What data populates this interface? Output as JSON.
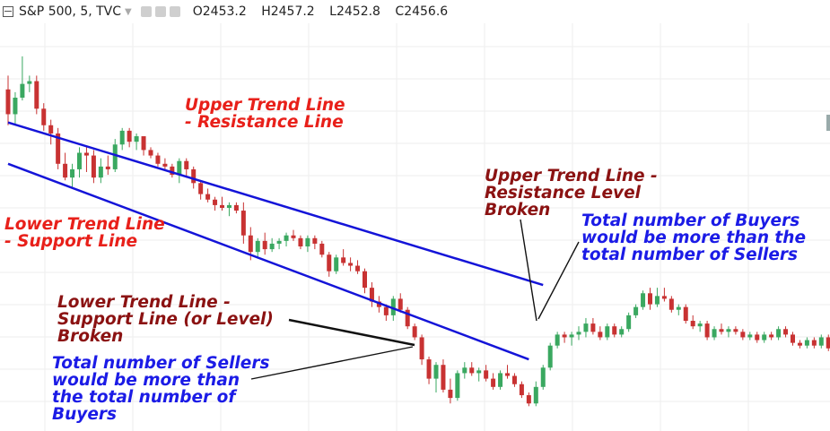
{
  "header": {
    "symbol": "S&P 500, 5, TVC",
    "open": "O2453.2",
    "high": "H2457.2",
    "low": "L2452.8",
    "close": "C2456.6",
    "icons": [
      "chart-panel-icon",
      "settings-icon",
      "visibility-icon",
      "close-icon"
    ]
  },
  "annotations": {
    "upper_trend_line": "Upper Trend Line\n- Resistance Line",
    "lower_trend_line": "Lower Trend Line\n- Support Line",
    "upper_broken": "Upper Trend Line -\nResistance Level\nBroken",
    "buyers": "Total number of Buyers\nwould be more than the\ntotal number of Sellers",
    "lower_broken": "Lower Trend Line -\nSupport Line (or Level)\nBroken",
    "sellers": "Total number of Sellers\nwould be more than\nthe total number of\nBuyers"
  },
  "colors": {
    "up_candle": "#3aa860",
    "down_candle": "#c83232",
    "trend_line": "#1414d8",
    "grid": "#eeeeee",
    "pointer": "#111111"
  },
  "chart_data": {
    "type": "candlestick",
    "symbol": "S&P 500",
    "interval": "5",
    "source": "TVC",
    "grid": true,
    "trend_lines": [
      {
        "points": [
          [
            0,
            2457.2
          ],
          [
            75,
            2451.3
          ]
        ]
      },
      {
        "points": [
          [
            0,
            2455.7
          ],
          [
            73,
            2448.6
          ]
        ]
      }
    ],
    "candles": [
      {
        "o": 2458.4,
        "h": 2458.9,
        "l": 2457.1,
        "c": 2457.5
      },
      {
        "o": 2457.5,
        "h": 2458.3,
        "l": 2457.1,
        "c": 2458.1
      },
      {
        "o": 2458.1,
        "h": 2459.6,
        "l": 2458.0,
        "c": 2458.6
      },
      {
        "o": 2458.6,
        "h": 2458.9,
        "l": 2458.3,
        "c": 2458.7
      },
      {
        "o": 2458.7,
        "h": 2458.9,
        "l": 2457.5,
        "c": 2457.7
      },
      {
        "o": 2457.7,
        "h": 2457.9,
        "l": 2456.9,
        "c": 2457.1
      },
      {
        "o": 2457.1,
        "h": 2457.3,
        "l": 2456.4,
        "c": 2456.8
      },
      {
        "o": 2456.8,
        "h": 2457.0,
        "l": 2455.5,
        "c": 2455.7
      },
      {
        "o": 2455.7,
        "h": 2456.1,
        "l": 2455.1,
        "c": 2455.2
      },
      {
        "o": 2455.2,
        "h": 2455.7,
        "l": 2454.8,
        "c": 2455.5
      },
      {
        "o": 2455.5,
        "h": 2456.3,
        "l": 2455.2,
        "c": 2456.1
      },
      {
        "o": 2456.1,
        "h": 2456.3,
        "l": 2455.4,
        "c": 2456.0
      },
      {
        "o": 2456.0,
        "h": 2456.2,
        "l": 2455.0,
        "c": 2455.2
      },
      {
        "o": 2455.2,
        "h": 2455.9,
        "l": 2455.0,
        "c": 2455.6
      },
      {
        "o": 2455.6,
        "h": 2456.0,
        "l": 2455.3,
        "c": 2455.5
      },
      {
        "o": 2455.5,
        "h": 2456.6,
        "l": 2455.4,
        "c": 2456.4
      },
      {
        "o": 2456.4,
        "h": 2457.0,
        "l": 2456.2,
        "c": 2456.9
      },
      {
        "o": 2456.9,
        "h": 2457.0,
        "l": 2456.3,
        "c": 2456.5
      },
      {
        "o": 2456.5,
        "h": 2456.8,
        "l": 2456.2,
        "c": 2456.7
      },
      {
        "o": 2456.7,
        "h": 2456.7,
        "l": 2456.0,
        "c": 2456.2
      },
      {
        "o": 2456.2,
        "h": 2456.3,
        "l": 2455.9,
        "c": 2456.0
      },
      {
        "o": 2456.0,
        "h": 2456.1,
        "l": 2455.6,
        "c": 2455.7
      },
      {
        "o": 2455.7,
        "h": 2455.9,
        "l": 2455.5,
        "c": 2455.6
      },
      {
        "o": 2455.6,
        "h": 2455.7,
        "l": 2455.2,
        "c": 2455.3
      },
      {
        "o": 2455.3,
        "h": 2455.9,
        "l": 2455.0,
        "c": 2455.8
      },
      {
        "o": 2455.8,
        "h": 2455.9,
        "l": 2455.2,
        "c": 2455.5
      },
      {
        "o": 2455.5,
        "h": 2455.6,
        "l": 2454.8,
        "c": 2455.0
      },
      {
        "o": 2455.0,
        "h": 2455.1,
        "l": 2454.4,
        "c": 2454.6
      },
      {
        "o": 2454.6,
        "h": 2454.8,
        "l": 2454.3,
        "c": 2454.4
      },
      {
        "o": 2454.4,
        "h": 2454.5,
        "l": 2454.0,
        "c": 2454.2
      },
      {
        "o": 2454.2,
        "h": 2454.5,
        "l": 2454.0,
        "c": 2454.1
      },
      {
        "o": 2454.1,
        "h": 2454.3,
        "l": 2453.8,
        "c": 2454.2
      },
      {
        "o": 2454.2,
        "h": 2454.3,
        "l": 2453.9,
        "c": 2454.0
      },
      {
        "o": 2454.0,
        "h": 2454.3,
        "l": 2452.8,
        "c": 2453.1
      },
      {
        "o": 2453.1,
        "h": 2453.4,
        "l": 2452.2,
        "c": 2452.5
      },
      {
        "o": 2452.5,
        "h": 2453.0,
        "l": 2452.3,
        "c": 2452.9
      },
      {
        "o": 2452.9,
        "h": 2453.2,
        "l": 2452.4,
        "c": 2452.6
      },
      {
        "o": 2452.6,
        "h": 2453.0,
        "l": 2452.5,
        "c": 2452.8
      },
      {
        "o": 2452.8,
        "h": 2453.0,
        "l": 2452.6,
        "c": 2452.9
      },
      {
        "o": 2452.9,
        "h": 2453.2,
        "l": 2452.7,
        "c": 2453.1
      },
      {
        "o": 2453.1,
        "h": 2453.3,
        "l": 2452.9,
        "c": 2453.0
      },
      {
        "o": 2453.0,
        "h": 2453.1,
        "l": 2452.6,
        "c": 2452.7
      },
      {
        "o": 2452.7,
        "h": 2453.1,
        "l": 2452.5,
        "c": 2453.0
      },
      {
        "o": 2453.0,
        "h": 2453.1,
        "l": 2452.6,
        "c": 2452.8
      },
      {
        "o": 2452.8,
        "h": 2452.9,
        "l": 2452.3,
        "c": 2452.4
      },
      {
        "o": 2452.4,
        "h": 2452.5,
        "l": 2451.6,
        "c": 2451.8
      },
      {
        "o": 2451.8,
        "h": 2452.4,
        "l": 2451.7,
        "c": 2452.3
      },
      {
        "o": 2452.3,
        "h": 2452.6,
        "l": 2452.0,
        "c": 2452.1
      },
      {
        "o": 2452.1,
        "h": 2452.3,
        "l": 2451.8,
        "c": 2452.0
      },
      {
        "o": 2452.0,
        "h": 2452.2,
        "l": 2451.7,
        "c": 2451.8
      },
      {
        "o": 2451.8,
        "h": 2451.9,
        "l": 2451.0,
        "c": 2451.2
      },
      {
        "o": 2451.2,
        "h": 2451.4,
        "l": 2450.5,
        "c": 2450.7
      },
      {
        "o": 2450.7,
        "h": 2450.9,
        "l": 2450.3,
        "c": 2450.5
      },
      {
        "o": 2450.5,
        "h": 2450.6,
        "l": 2450.0,
        "c": 2450.2
      },
      {
        "o": 2450.2,
        "h": 2450.9,
        "l": 2450.0,
        "c": 2450.8
      },
      {
        "o": 2450.8,
        "h": 2451.0,
        "l": 2450.3,
        "c": 2450.4
      },
      {
        "o": 2450.4,
        "h": 2450.5,
        "l": 2449.7,
        "c": 2449.8
      },
      {
        "o": 2449.8,
        "h": 2449.9,
        "l": 2449.3,
        "c": 2449.4
      },
      {
        "o": 2449.4,
        "h": 2449.5,
        "l": 2448.4,
        "c": 2448.6
      },
      {
        "o": 2448.6,
        "h": 2448.7,
        "l": 2447.7,
        "c": 2447.9
      },
      {
        "o": 2447.9,
        "h": 2448.5,
        "l": 2447.4,
        "c": 2448.4
      },
      {
        "o": 2448.4,
        "h": 2448.6,
        "l": 2447.4,
        "c": 2447.5
      },
      {
        "o": 2447.5,
        "h": 2447.9,
        "l": 2447.0,
        "c": 2447.2
      },
      {
        "o": 2447.2,
        "h": 2448.2,
        "l": 2447.1,
        "c": 2448.1
      },
      {
        "o": 2448.1,
        "h": 2448.5,
        "l": 2447.9,
        "c": 2448.3
      },
      {
        "o": 2448.3,
        "h": 2448.5,
        "l": 2448.0,
        "c": 2448.1
      },
      {
        "o": 2448.1,
        "h": 2448.3,
        "l": 2447.8,
        "c": 2448.2
      },
      {
        "o": 2448.2,
        "h": 2448.4,
        "l": 2447.8,
        "c": 2447.9
      },
      {
        "o": 2447.9,
        "h": 2448.1,
        "l": 2447.5,
        "c": 2447.6
      },
      {
        "o": 2447.6,
        "h": 2448.2,
        "l": 2447.5,
        "c": 2448.1
      },
      {
        "o": 2448.1,
        "h": 2448.4,
        "l": 2447.9,
        "c": 2448.0
      },
      {
        "o": 2448.0,
        "h": 2448.1,
        "l": 2447.6,
        "c": 2447.7
      },
      {
        "o": 2447.7,
        "h": 2447.8,
        "l": 2447.2,
        "c": 2447.3
      },
      {
        "o": 2447.3,
        "h": 2447.4,
        "l": 2446.9,
        "c": 2447.0
      },
      {
        "o": 2447.0,
        "h": 2447.8,
        "l": 2446.9,
        "c": 2447.6
      },
      {
        "o": 2447.6,
        "h": 2448.4,
        "l": 2447.5,
        "c": 2448.3
      },
      {
        "o": 2448.3,
        "h": 2449.2,
        "l": 2448.2,
        "c": 2449.1
      },
      {
        "o": 2449.1,
        "h": 2449.6,
        "l": 2449.0,
        "c": 2449.5
      },
      {
        "o": 2449.5,
        "h": 2449.6,
        "l": 2449.2,
        "c": 2449.4
      },
      {
        "o": 2449.4,
        "h": 2449.6,
        "l": 2449.1,
        "c": 2449.5
      },
      {
        "o": 2449.5,
        "h": 2449.8,
        "l": 2449.3,
        "c": 2449.6
      },
      {
        "o": 2449.6,
        "h": 2450.1,
        "l": 2449.4,
        "c": 2449.9
      },
      {
        "o": 2449.9,
        "h": 2450.1,
        "l": 2449.5,
        "c": 2449.6
      },
      {
        "o": 2449.6,
        "h": 2449.8,
        "l": 2449.3,
        "c": 2449.4
      },
      {
        "o": 2449.4,
        "h": 2449.9,
        "l": 2449.3,
        "c": 2449.8
      },
      {
        "o": 2449.8,
        "h": 2449.9,
        "l": 2449.4,
        "c": 2449.5
      },
      {
        "o": 2449.5,
        "h": 2449.8,
        "l": 2449.4,
        "c": 2449.7
      },
      {
        "o": 2449.7,
        "h": 2450.3,
        "l": 2449.6,
        "c": 2450.2
      },
      {
        "o": 2450.2,
        "h": 2450.6,
        "l": 2450.1,
        "c": 2450.5
      },
      {
        "o": 2450.5,
        "h": 2451.1,
        "l": 2450.4,
        "c": 2451.0
      },
      {
        "o": 2451.0,
        "h": 2451.2,
        "l": 2450.4,
        "c": 2450.6
      },
      {
        "o": 2450.6,
        "h": 2451.2,
        "l": 2450.5,
        "c": 2450.9
      },
      {
        "o": 2450.9,
        "h": 2451.2,
        "l": 2450.7,
        "c": 2450.8
      },
      {
        "o": 2450.8,
        "h": 2450.9,
        "l": 2450.3,
        "c": 2450.4
      },
      {
        "o": 2450.4,
        "h": 2450.6,
        "l": 2450.2,
        "c": 2450.5
      },
      {
        "o": 2450.5,
        "h": 2450.6,
        "l": 2449.9,
        "c": 2450.0
      },
      {
        "o": 2450.0,
        "h": 2450.2,
        "l": 2449.7,
        "c": 2449.8
      },
      {
        "o": 2449.8,
        "h": 2450.0,
        "l": 2449.6,
        "c": 2449.9
      },
      {
        "o": 2449.9,
        "h": 2450.0,
        "l": 2449.3,
        "c": 2449.4
      },
      {
        "o": 2449.4,
        "h": 2449.8,
        "l": 2449.3,
        "c": 2449.7
      },
      {
        "o": 2449.7,
        "h": 2449.9,
        "l": 2449.5,
        "c": 2449.6
      },
      {
        "o": 2449.6,
        "h": 2449.8,
        "l": 2449.4,
        "c": 2449.7
      },
      {
        "o": 2449.7,
        "h": 2449.8,
        "l": 2449.5,
        "c": 2449.6
      },
      {
        "o": 2449.6,
        "h": 2449.7,
        "l": 2449.3,
        "c": 2449.4
      },
      {
        "o": 2449.4,
        "h": 2449.6,
        "l": 2449.3,
        "c": 2449.5
      },
      {
        "o": 2449.5,
        "h": 2449.6,
        "l": 2449.2,
        "c": 2449.3
      },
      {
        "o": 2449.3,
        "h": 2449.6,
        "l": 2449.2,
        "c": 2449.5
      },
      {
        "o": 2449.5,
        "h": 2449.6,
        "l": 2449.3,
        "c": 2449.4
      },
      {
        "o": 2449.4,
        "h": 2449.8,
        "l": 2449.3,
        "c": 2449.7
      },
      {
        "o": 2449.7,
        "h": 2449.8,
        "l": 2449.4,
        "c": 2449.5
      },
      {
        "o": 2449.5,
        "h": 2449.6,
        "l": 2449.1,
        "c": 2449.2
      },
      {
        "o": 2449.2,
        "h": 2449.3,
        "l": 2449.0,
        "c": 2449.1
      },
      {
        "o": 2449.1,
        "h": 2449.4,
        "l": 2449.0,
        "c": 2449.3
      },
      {
        "o": 2449.3,
        "h": 2449.4,
        "l": 2449.0,
        "c": 2449.1
      },
      {
        "o": 2449.1,
        "h": 2449.5,
        "l": 2449.0,
        "c": 2449.4
      },
      {
        "o": 2449.4,
        "h": 2449.5,
        "l": 2448.9,
        "c": 2449.0
      },
      {
        "o": 2449.0,
        "h": 2449.1,
        "l": 2448.4,
        "c": 2448.5
      }
    ]
  }
}
